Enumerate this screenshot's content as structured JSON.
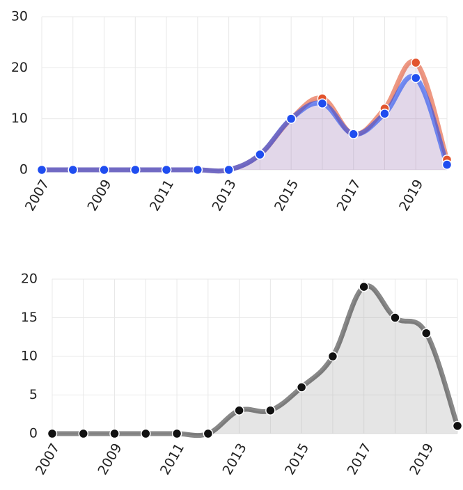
{
  "chart_data": [
    {
      "type": "area",
      "x": [
        2007,
        2008,
        2009,
        2010,
        2011,
        2012,
        2013,
        2014,
        2015,
        2016,
        2017,
        2018,
        2019,
        2020
      ],
      "series": [
        {
          "color": "#e2542e",
          "values": [
            0,
            0,
            0,
            0,
            0,
            0,
            0,
            3,
            10,
            14,
            7,
            12,
            21,
            2
          ]
        },
        {
          "color": "#1f4df0",
          "values": [
            0,
            0,
            0,
            0,
            0,
            0,
            0,
            3,
            10,
            13,
            7,
            11,
            18,
            1
          ]
        }
      ],
      "xlim": [
        2007,
        2020
      ],
      "xticks": [
        2007,
        2009,
        2011,
        2013,
        2015,
        2017,
        2019
      ],
      "ylim": [
        0,
        30
      ],
      "yticks": [
        0,
        10,
        20,
        30
      ],
      "grid": true
    },
    {
      "type": "area",
      "x": [
        2007,
        2008,
        2009,
        2010,
        2011,
        2012,
        2013,
        2014,
        2015,
        2016,
        2017,
        2018,
        2019,
        2020
      ],
      "series": [
        {
          "color": "#111111",
          "values": [
            0,
            0,
            0,
            0,
            0,
            0,
            3,
            3,
            6,
            10,
            19,
            15,
            13,
            1
          ]
        }
      ],
      "xlim": [
        2007,
        2020
      ],
      "xticks": [
        2007,
        2009,
        2011,
        2013,
        2015,
        2017,
        2019
      ],
      "ylim": [
        0,
        20
      ],
      "yticks": [
        0,
        5,
        10,
        15,
        20
      ],
      "grid": true
    }
  ]
}
